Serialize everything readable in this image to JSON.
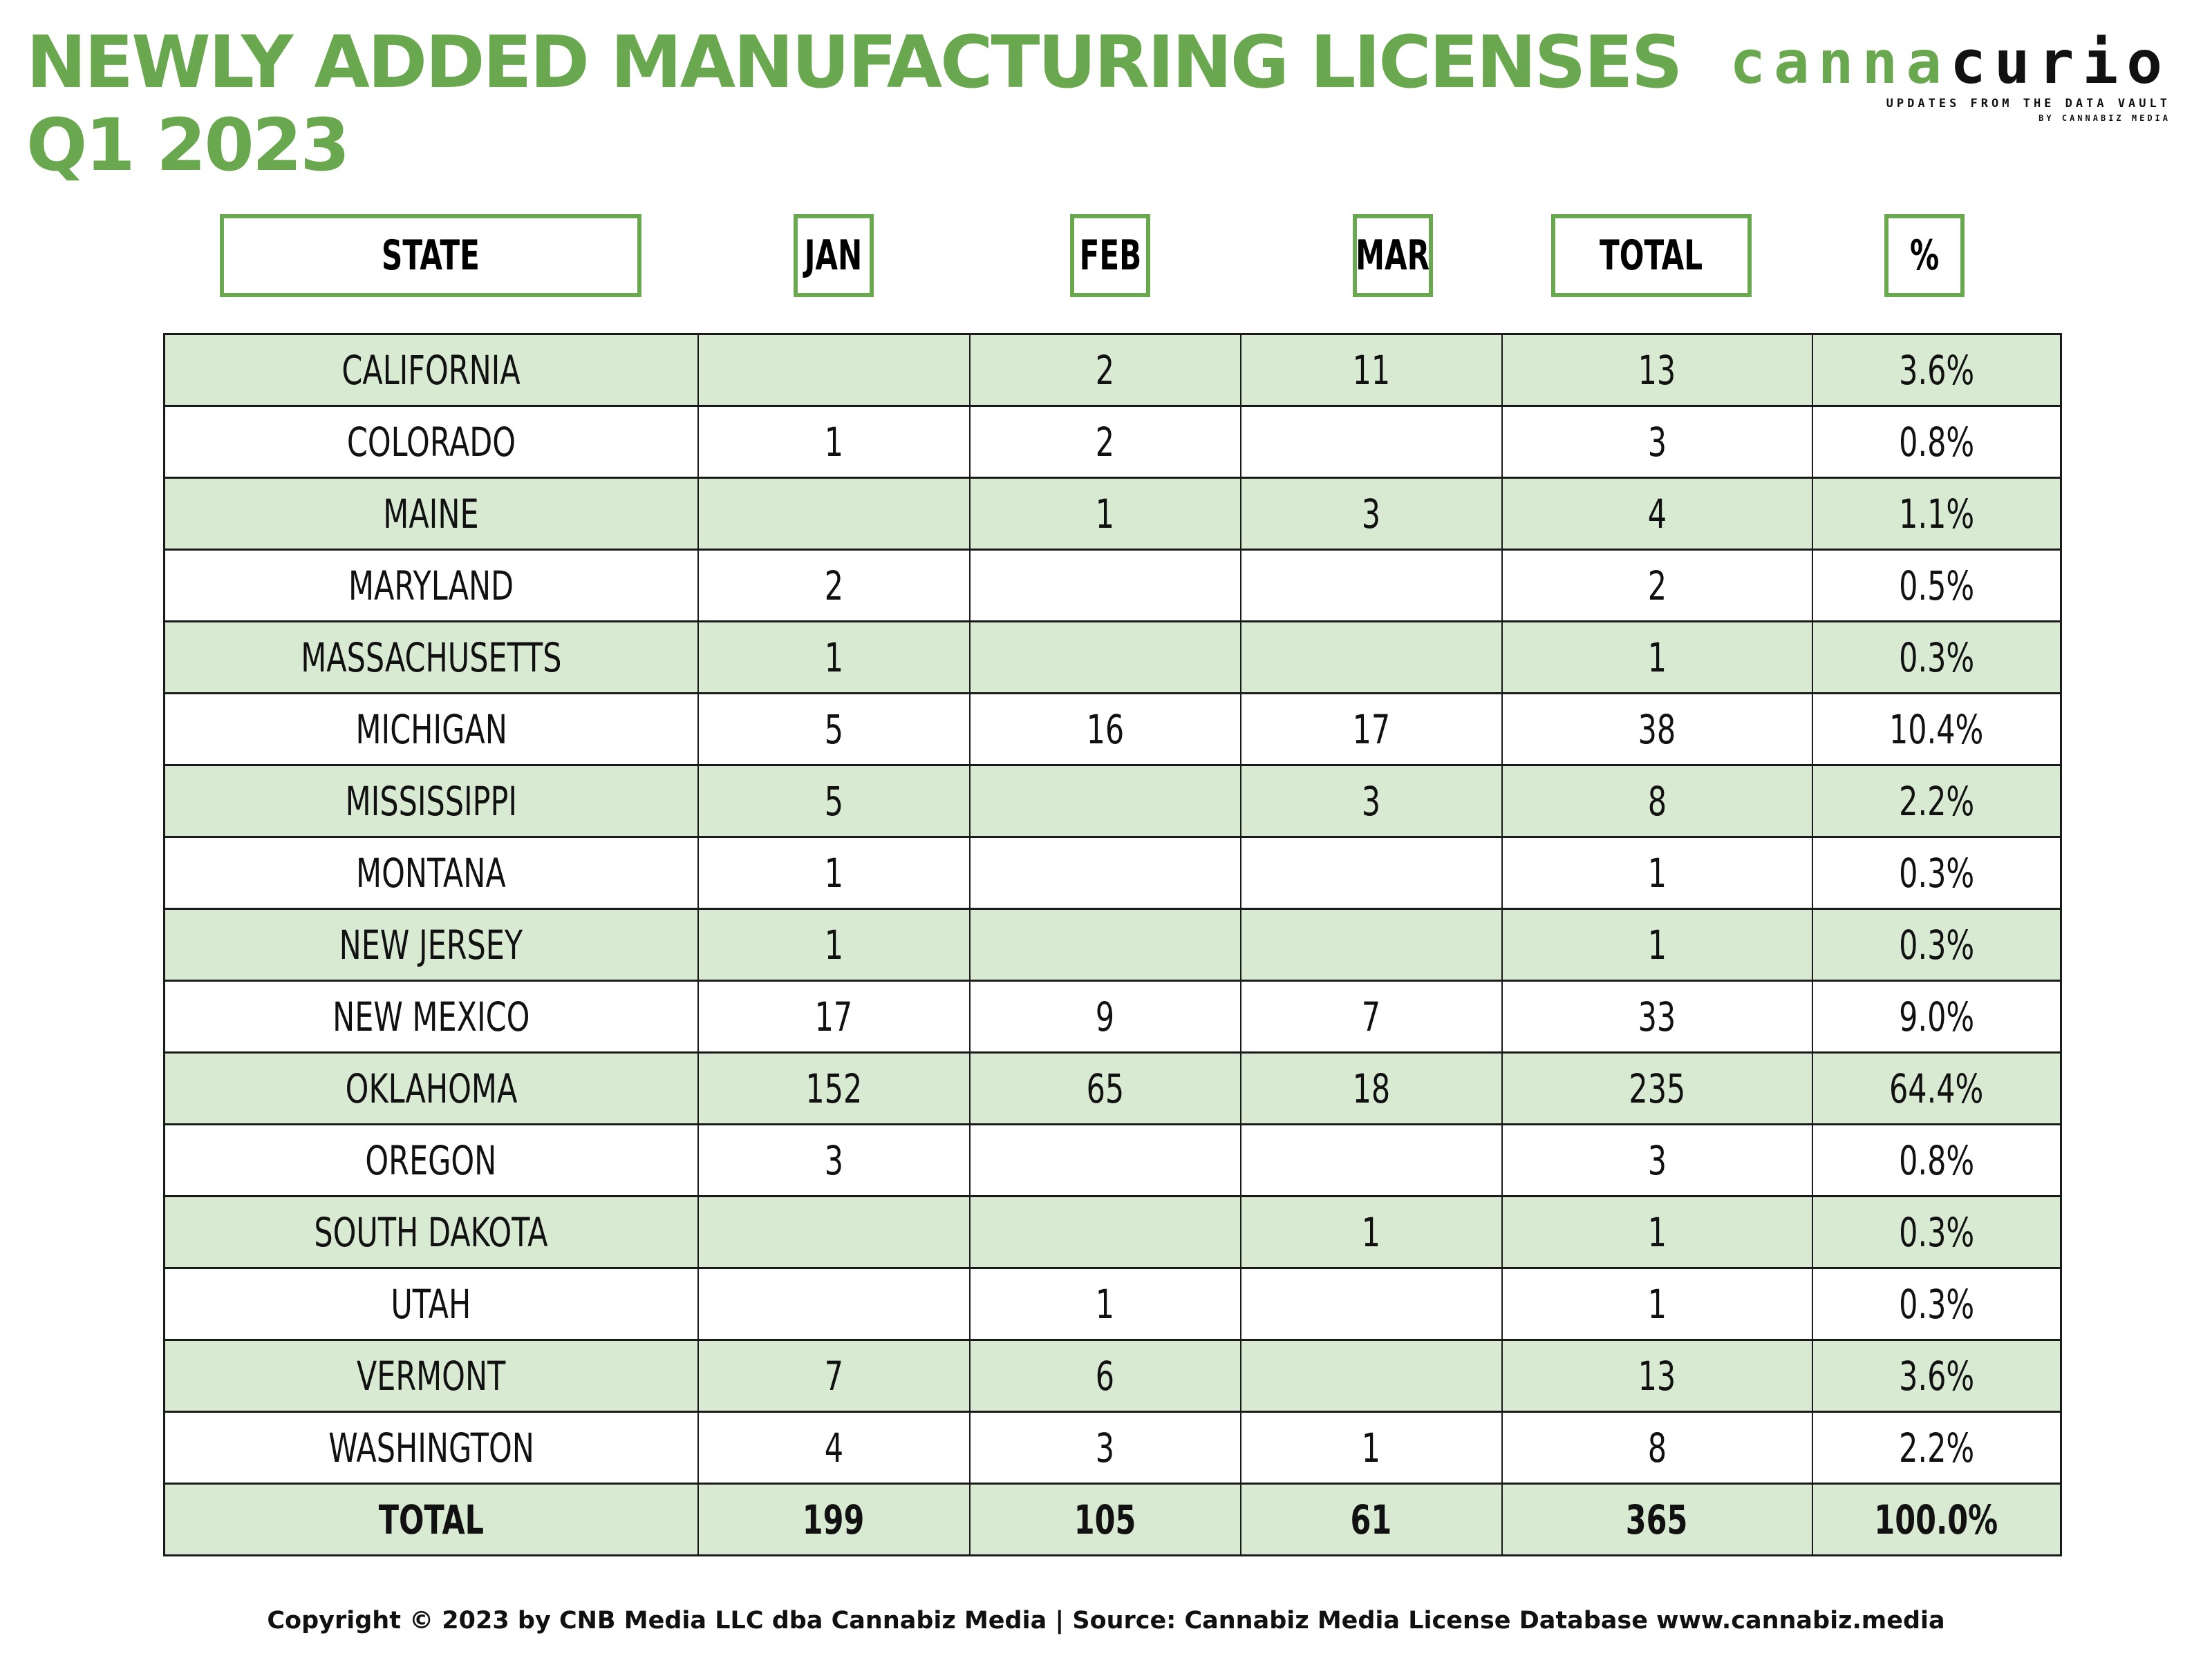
{
  "title_line1": "NEWLY ADDED MANUFACTURING LICENSES",
  "title_line2": "Q1 2023",
  "logo": {
    "part1": "canna",
    "part2": "curio",
    "tagline": "UPDATES FROM THE DATA VAULT",
    "subtag": "BY CANNABIZ MEDIA"
  },
  "footer": "Copyright © 2023 by CNB Media LLC dba Cannabiz Media | Source: Cannabiz Media License Database www.cannabiz.media",
  "colors": {
    "accent_green": "#6aa84f",
    "row_shade": "#d9ead3",
    "text": "#111111"
  },
  "chart_data": {
    "type": "table",
    "title": "NEWLY ADDED MANUFACTURING LICENSES Q1 2023",
    "columns": [
      "STATE",
      "JAN",
      "FEB",
      "MAR",
      "TOTAL",
      "%"
    ],
    "rows": [
      [
        "CALIFORNIA",
        "",
        "2",
        "11",
        "13",
        "3.6%"
      ],
      [
        "COLORADO",
        "1",
        "2",
        "",
        "3",
        "0.8%"
      ],
      [
        "MAINE",
        "",
        "1",
        "3",
        "4",
        "1.1%"
      ],
      [
        "MARYLAND",
        "2",
        "",
        "",
        "2",
        "0.5%"
      ],
      [
        "MASSACHUSETTS",
        "1",
        "",
        "",
        "1",
        "0.3%"
      ],
      [
        "MICHIGAN",
        "5",
        "16",
        "17",
        "38",
        "10.4%"
      ],
      [
        "MISSISSIPPI",
        "5",
        "",
        "3",
        "8",
        "2.2%"
      ],
      [
        "MONTANA",
        "1",
        "",
        "",
        "1",
        "0.3%"
      ],
      [
        "NEW JERSEY",
        "1",
        "",
        "",
        "1",
        "0.3%"
      ],
      [
        "NEW MEXICO",
        "17",
        "9",
        "7",
        "33",
        "9.0%"
      ],
      [
        "OKLAHOMA",
        "152",
        "65",
        "18",
        "235",
        "64.4%"
      ],
      [
        "OREGON",
        "3",
        "",
        "",
        "3",
        "0.8%"
      ],
      [
        "SOUTH DAKOTA",
        "",
        "",
        "1",
        "1",
        "0.3%"
      ],
      [
        "UTAH",
        "",
        "1",
        "",
        "1",
        "0.3%"
      ],
      [
        "VERMONT",
        "7",
        "6",
        "",
        "13",
        "3.6%"
      ],
      [
        "WASHINGTON",
        "4",
        "3",
        "1",
        "8",
        "2.2%"
      ]
    ],
    "total_row": [
      "TOTAL",
      "199",
      "105",
      "61",
      "365",
      "100.0%"
    ]
  }
}
